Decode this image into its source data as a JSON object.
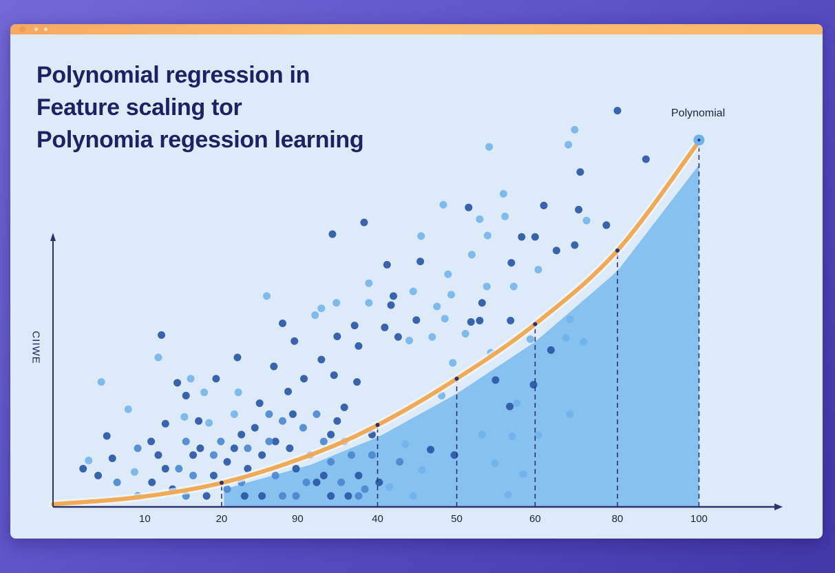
{
  "title_lines": [
    "Polynomial regression  in",
    "Feature scaling tor",
    "Polynomia regession learning"
  ],
  "colors": {
    "panel": "#dcebf7",
    "titlebar": "#f8b46a",
    "curve": "#f0a954",
    "fill_area": "#7dbcee",
    "axis": "#2a3370",
    "dot_dark": "#2a58a6",
    "dot_medium": "#4c88d0",
    "dot_light": "#6fb1ea",
    "title_text": "#1c2263"
  },
  "chart_data": {
    "type": "scatter",
    "title": "Polynomial regression  in Feature scaling tor Polynomia regession learning",
    "xlabel": "",
    "ylabel": "CIIWE",
    "xlim": [
      -1.6,
      90.4
    ],
    "ylim": [
      0,
      150
    ],
    "grid": false,
    "x_ticks": [
      {
        "label": "10",
        "at": 10
      },
      {
        "label": "20",
        "at": 19.7
      },
      {
        "label": "90",
        "at": 29.3
      },
      {
        "label": "40",
        "at": 39.4
      },
      {
        "label": "50",
        "at": 49.4
      },
      {
        "label": "60",
        "at": 59.3
      },
      {
        "label": "80",
        "at": 69.7
      },
      {
        "label": "100",
        "at": 80
      }
    ],
    "fit_curve": {
      "name": "Polynomial",
      "points": [
        [
          -1.6,
          1
        ],
        [
          9.1,
          3.5
        ],
        [
          20,
          9
        ],
        [
          30.9,
          19
        ],
        [
          39.6,
          30.3
        ],
        [
          49.4,
          47
        ],
        [
          59.3,
          67
        ],
        [
          69.7,
          94
        ],
        [
          80,
          134
        ]
      ]
    },
    "shaded_area": {
      "x_from": 20,
      "x_to": 80
    },
    "dashed_guides_at": [
      19.7,
      39.4,
      49.4,
      59.3,
      69.7,
      80
    ],
    "points": [
      [
        69.7,
        145.3,
        "d"
      ],
      [
        64.3,
        138.3,
        "l"
      ],
      [
        53.5,
        132,
        "l"
      ],
      [
        63.5,
        132.8,
        "l"
      ],
      [
        73.3,
        127.5,
        "d"
      ],
      [
        65,
        122.8,
        "d"
      ],
      [
        55.3,
        114.8,
        "l"
      ],
      [
        47.7,
        110.8,
        "l"
      ],
      [
        50.9,
        109.8,
        "d"
      ],
      [
        60.4,
        110.5,
        "d"
      ],
      [
        64.8,
        109,
        "d"
      ],
      [
        65.8,
        105,
        "l"
      ],
      [
        52.3,
        105.5,
        "l"
      ],
      [
        55.5,
        106.5,
        "l"
      ],
      [
        37.7,
        104.3,
        "d"
      ],
      [
        33.7,
        100,
        "d"
      ],
      [
        68.3,
        103.3,
        "d"
      ],
      [
        57.6,
        99,
        "d"
      ],
      [
        59.3,
        99,
        "d"
      ],
      [
        53.3,
        99.5,
        "l"
      ],
      [
        44.9,
        99.3,
        "l"
      ],
      [
        64.3,
        96,
        "d"
      ],
      [
        62,
        94,
        "d"
      ],
      [
        40.6,
        88.8,
        "d"
      ],
      [
        44.8,
        90,
        "d"
      ],
      [
        51.3,
        92.5,
        "l"
      ],
      [
        56.3,
        89.5,
        "d"
      ],
      [
        59.7,
        87,
        "l"
      ],
      [
        48.3,
        85.3,
        "l"
      ],
      [
        38.3,
        82,
        "l"
      ],
      [
        53.2,
        80.8,
        "l"
      ],
      [
        56.6,
        80.8,
        "l"
      ],
      [
        25.4,
        77.3,
        "l"
      ],
      [
        41.4,
        77.3,
        "d"
      ],
      [
        41.1,
        74,
        "d"
      ],
      [
        43.9,
        79,
        "l"
      ],
      [
        48.7,
        77.8,
        "l"
      ],
      [
        34.2,
        74.8,
        "l"
      ],
      [
        32.3,
        72.8,
        "l"
      ],
      [
        38.3,
        74.8,
        "l"
      ],
      [
        46.9,
        73.5,
        "l"
      ],
      [
        52.6,
        74.8,
        "d"
      ],
      [
        31.5,
        70.3,
        "l"
      ],
      [
        44.3,
        68.5,
        "d"
      ],
      [
        47.9,
        69,
        "l"
      ],
      [
        51.2,
        67.8,
        "d"
      ],
      [
        52.3,
        68.3,
        "d"
      ],
      [
        56.2,
        68.3,
        "d"
      ],
      [
        27.4,
        67.3,
        "d"
      ],
      [
        36.5,
        66.5,
        "d"
      ],
      [
        40.3,
        65.8,
        "d"
      ],
      [
        63.7,
        68.8,
        "l"
      ],
      [
        12.1,
        63,
        "d"
      ],
      [
        34.3,
        62.5,
        "d"
      ],
      [
        28.9,
        60.8,
        "d"
      ],
      [
        42,
        62.3,
        "d"
      ],
      [
        43.4,
        61,
        "l"
      ],
      [
        46.3,
        62.3,
        "l"
      ],
      [
        50.5,
        63.5,
        "l"
      ],
      [
        63.2,
        62,
        "l"
      ],
      [
        65.4,
        60.5,
        "l"
      ],
      [
        58.7,
        61.5,
        "l"
      ],
      [
        37,
        59,
        "d"
      ],
      [
        21.7,
        54.8,
        "d"
      ],
      [
        26.3,
        51.5,
        "d"
      ],
      [
        11.7,
        54.8,
        "l"
      ],
      [
        61.3,
        57.5,
        "d"
      ],
      [
        53.7,
        56.5,
        "l"
      ],
      [
        48.9,
        52.8,
        "l"
      ],
      [
        32.3,
        54,
        "d"
      ],
      [
        4.5,
        45.8,
        "l"
      ],
      [
        14.1,
        45.5,
        "d"
      ],
      [
        15.8,
        47,
        "l"
      ],
      [
        19,
        47,
        "d"
      ],
      [
        30.1,
        47,
        "d"
      ],
      [
        33.9,
        48.3,
        "d"
      ],
      [
        36.8,
        45.8,
        "d"
      ],
      [
        54.3,
        46.5,
        "d"
      ],
      [
        59.1,
        44.8,
        "d"
      ],
      [
        47.5,
        40.8,
        "l"
      ],
      [
        17.5,
        42,
        "l"
      ],
      [
        15.2,
        40.8,
        "d"
      ],
      [
        21.8,
        42,
        "l"
      ],
      [
        28.1,
        42.3,
        "d"
      ],
      [
        24.5,
        38,
        "d"
      ],
      [
        63.7,
        34,
        "l"
      ],
      [
        56.1,
        36.8,
        "d"
      ],
      [
        57,
        38,
        "l"
      ],
      [
        7.9,
        35.8,
        "l"
      ],
      [
        12.6,
        30.5,
        "d"
      ],
      [
        15,
        33,
        "l"
      ],
      [
        16.8,
        31.5,
        "d"
      ],
      [
        18.1,
        30.8,
        "l"
      ],
      [
        5.2,
        26,
        "d"
      ],
      [
        10.8,
        24,
        "d"
      ],
      [
        56.4,
        25.8,
        "l"
      ],
      [
        59.7,
        26.3,
        "l"
      ],
      [
        42.9,
        23,
        "l"
      ],
      [
        46.1,
        21,
        "d"
      ],
      [
        49.1,
        19,
        "d"
      ],
      [
        52.6,
        26.5,
        "l"
      ],
      [
        2.9,
        17,
        "l"
      ],
      [
        5.9,
        17.8,
        "d"
      ],
      [
        2.2,
        14,
        "d"
      ],
      [
        4.1,
        11.5,
        "d"
      ],
      [
        8.7,
        12.8,
        "l"
      ],
      [
        45,
        13.5,
        "l"
      ],
      [
        54.2,
        16,
        "l"
      ],
      [
        57.8,
        12,
        "l"
      ],
      [
        55.9,
        4.5,
        "l"
      ],
      [
        40.9,
        7.3,
        "l"
      ],
      [
        43.9,
        4,
        "l"
      ],
      [
        9.1,
        21.5,
        "m"
      ],
      [
        11.7,
        19,
        "d"
      ],
      [
        14.3,
        14,
        "m"
      ],
      [
        17,
        21.5,
        "d"
      ],
      [
        19.6,
        24,
        "m"
      ],
      [
        22.2,
        26.5,
        "d"
      ],
      [
        24.8,
        19,
        "d"
      ],
      [
        26.5,
        11.5,
        "m"
      ],
      [
        28.3,
        21.5,
        "d"
      ],
      [
        30,
        29,
        "m"
      ],
      [
        31.7,
        9,
        "d"
      ],
      [
        33.5,
        16.5,
        "m"
      ],
      [
        35.2,
        24,
        "d"
      ],
      [
        37,
        11.5,
        "d"
      ],
      [
        38.7,
        19,
        "m"
      ],
      [
        22.2,
        9,
        "m"
      ],
      [
        17.8,
        4,
        "d"
      ],
      [
        13.5,
        6.5,
        "d"
      ],
      [
        9.1,
        4,
        "m"
      ],
      [
        24.8,
        4,
        "d"
      ],
      [
        29.1,
        4,
        "m"
      ],
      [
        33.5,
        4,
        "d"
      ],
      [
        37,
        4,
        "m"
      ],
      [
        15.2,
        24,
        "m"
      ],
      [
        20.4,
        16.5,
        "d"
      ],
      [
        23,
        21.5,
        "m"
      ],
      [
        27.4,
        31.5,
        "m"
      ],
      [
        30.9,
        19,
        "d"
      ],
      [
        34.3,
        31.5,
        "d"
      ],
      [
        36.1,
        19,
        "m"
      ],
      [
        6.5,
        9,
        "m"
      ],
      [
        10.9,
        9,
        "d"
      ],
      [
        18.7,
        11.5,
        "d"
      ],
      [
        26.5,
        24,
        "d"
      ],
      [
        32.6,
        24,
        "m"
      ],
      [
        38.7,
        26.5,
        "d"
      ],
      [
        39.6,
        9,
        "d"
      ],
      [
        42.2,
        16.5,
        "m"
      ],
      [
        25.7,
        34,
        "m"
      ],
      [
        21.3,
        34,
        "l"
      ],
      [
        16.1,
        11.5,
        "m"
      ],
      [
        12.6,
        14,
        "d"
      ],
      [
        31.7,
        34,
        "m"
      ],
      [
        35.2,
        36.5,
        "d"
      ],
      [
        20.4,
        6.5,
        "m"
      ],
      [
        23,
        14,
        "d"
      ],
      [
        25.7,
        24,
        "m"
      ],
      [
        29.1,
        14,
        "d"
      ],
      [
        30.4,
        9,
        "m"
      ],
      [
        32.6,
        11.5,
        "d"
      ],
      [
        34.8,
        9,
        "m"
      ],
      [
        35.7,
        4,
        "d"
      ],
      [
        37.8,
        6.5,
        "m"
      ],
      [
        27.4,
        4,
        "m"
      ],
      [
        22.6,
        4,
        "d"
      ],
      [
        15.2,
        4,
        "m"
      ],
      [
        16.1,
        19,
        "d"
      ],
      [
        18.7,
        19,
        "m"
      ],
      [
        21.3,
        21.5,
        "d"
      ],
      [
        23.9,
        29,
        "d"
      ],
      [
        28.7,
        34,
        "d"
      ],
      [
        33.5,
        26.5,
        "d"
      ]
    ]
  }
}
